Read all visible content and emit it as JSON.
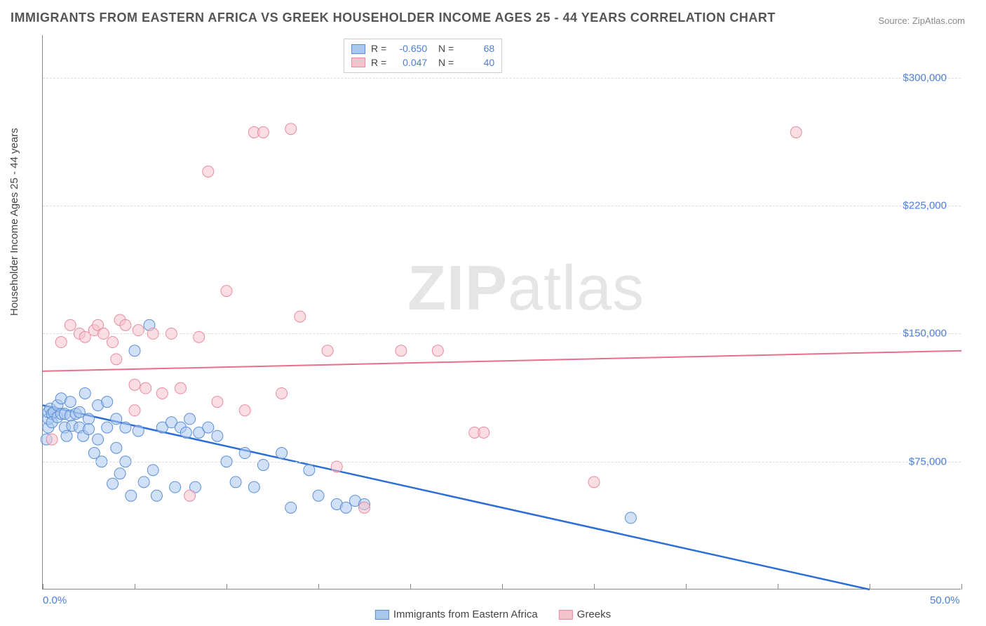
{
  "title": "IMMIGRANTS FROM EASTERN AFRICA VS GREEK HOUSEHOLDER INCOME AGES 25 - 44 YEARS CORRELATION CHART",
  "source": "Source: ZipAtlas.com",
  "watermark_zip": "ZIP",
  "watermark_atlas": "atlas",
  "ylabel": "Householder Income Ages 25 - 44 years",
  "chart": {
    "type": "scatter",
    "xlim": [
      0,
      50
    ],
    "ylim": [
      0,
      325000
    ],
    "x_ticks_minor": [
      0,
      5,
      10,
      15,
      20,
      25,
      30,
      35,
      40,
      45,
      50
    ],
    "x_tick_labels": {
      "0": "0.0%",
      "50": "50.0%"
    },
    "y_gridlines": [
      75000,
      150000,
      225000,
      300000
    ],
    "y_tick_labels": [
      "$75,000",
      "$150,000",
      "$225,000",
      "$300,000"
    ],
    "grid_color": "#dddddd",
    "axis_color": "#888888",
    "plot_bg": "#ffffff",
    "series": [
      {
        "name": "Immigrants from Eastern Africa",
        "color_fill": "#a9c7ee",
        "color_stroke": "#5b8fd6",
        "fill_opacity": 0.55,
        "marker_r": 8,
        "R": "-0.650",
        "N": "68",
        "trend": {
          "x1": 0,
          "y1": 108000,
          "x2": 45,
          "y2": 0,
          "color": "#2b6fd6",
          "width": 2.5
        },
        "points": [
          [
            0.3,
            95000
          ],
          [
            0.3,
            100000
          ],
          [
            0.3,
            104000
          ],
          [
            0.4,
            106000
          ],
          [
            0.5,
            103000
          ],
          [
            0.5,
            98000
          ],
          [
            0.6,
            104000
          ],
          [
            0.8,
            108000
          ],
          [
            0.8,
            101000
          ],
          [
            1.0,
            112000
          ],
          [
            1.0,
            103000
          ],
          [
            1.2,
            103000
          ],
          [
            1.2,
            95000
          ],
          [
            1.3,
            90000
          ],
          [
            1.5,
            110000
          ],
          [
            1.5,
            102000
          ],
          [
            1.6,
            96000
          ],
          [
            1.8,
            103000
          ],
          [
            2.0,
            104000
          ],
          [
            2.0,
            95000
          ],
          [
            2.2,
            90000
          ],
          [
            2.3,
            115000
          ],
          [
            2.5,
            100000
          ],
          [
            2.5,
            94000
          ],
          [
            2.8,
            80000
          ],
          [
            3.0,
            108000
          ],
          [
            3.0,
            88000
          ],
          [
            3.2,
            75000
          ],
          [
            3.5,
            110000
          ],
          [
            3.5,
            95000
          ],
          [
            3.8,
            62000
          ],
          [
            4.0,
            100000
          ],
          [
            4.0,
            83000
          ],
          [
            4.2,
            68000
          ],
          [
            4.5,
            95000
          ],
          [
            4.5,
            75000
          ],
          [
            4.8,
            55000
          ],
          [
            5.0,
            140000
          ],
          [
            5.2,
            93000
          ],
          [
            5.5,
            63000
          ],
          [
            5.8,
            155000
          ],
          [
            6.0,
            70000
          ],
          [
            6.2,
            55000
          ],
          [
            6.5,
            95000
          ],
          [
            7.0,
            98000
          ],
          [
            7.2,
            60000
          ],
          [
            7.5,
            95000
          ],
          [
            7.8,
            92000
          ],
          [
            8.0,
            100000
          ],
          [
            8.3,
            60000
          ],
          [
            8.5,
            92000
          ],
          [
            9.0,
            95000
          ],
          [
            9.5,
            90000
          ],
          [
            10.0,
            75000
          ],
          [
            10.5,
            63000
          ],
          [
            11.0,
            80000
          ],
          [
            11.5,
            60000
          ],
          [
            12.0,
            73000
          ],
          [
            13.0,
            80000
          ],
          [
            13.5,
            48000
          ],
          [
            14.5,
            70000
          ],
          [
            15.0,
            55000
          ],
          [
            16.0,
            50000
          ],
          [
            16.5,
            48000
          ],
          [
            17.0,
            52000
          ],
          [
            17.5,
            50000
          ],
          [
            32.0,
            42000
          ],
          [
            0.2,
            88000
          ]
        ]
      },
      {
        "name": "Greeks",
        "color_fill": "#f5c3ce",
        "color_stroke": "#e98ba0",
        "fill_opacity": 0.55,
        "marker_r": 8,
        "R": "0.047",
        "N": "40",
        "trend": {
          "x1": 0,
          "y1": 128000,
          "x2": 50,
          "y2": 140000,
          "color": "#e76f8c",
          "width": 2
        },
        "points": [
          [
            0.5,
            88000
          ],
          [
            1.0,
            145000
          ],
          [
            1.5,
            155000
          ],
          [
            2.0,
            150000
          ],
          [
            2.3,
            148000
          ],
          [
            2.8,
            152000
          ],
          [
            3.0,
            155000
          ],
          [
            3.3,
            150000
          ],
          [
            3.8,
            145000
          ],
          [
            4.2,
            158000
          ],
          [
            4.5,
            155000
          ],
          [
            5.0,
            120000
          ],
          [
            5.2,
            152000
          ],
          [
            5.6,
            118000
          ],
          [
            6.0,
            150000
          ],
          [
            6.5,
            115000
          ],
          [
            7.0,
            150000
          ],
          [
            7.5,
            118000
          ],
          [
            8.0,
            55000
          ],
          [
            8.5,
            148000
          ],
          [
            9.0,
            245000
          ],
          [
            9.5,
            110000
          ],
          [
            10.0,
            175000
          ],
          [
            11.0,
            105000
          ],
          [
            11.5,
            268000
          ],
          [
            12.0,
            268000
          ],
          [
            13.0,
            115000
          ],
          [
            13.5,
            270000
          ],
          [
            14.0,
            160000
          ],
          [
            15.5,
            140000
          ],
          [
            16.0,
            72000
          ],
          [
            17.5,
            48000
          ],
          [
            19.5,
            140000
          ],
          [
            21.5,
            140000
          ],
          [
            23.5,
            92000
          ],
          [
            24.0,
            92000
          ],
          [
            30.0,
            63000
          ],
          [
            41.0,
            268000
          ],
          [
            5.0,
            105000
          ],
          [
            4.0,
            135000
          ]
        ]
      }
    ]
  },
  "bottom_legend": [
    {
      "label": "Immigrants from Eastern Africa",
      "fill": "#a9c7ee",
      "stroke": "#5b8fd6"
    },
    {
      "label": "Greeks",
      "fill": "#f5c3ce",
      "stroke": "#e98ba0"
    }
  ]
}
